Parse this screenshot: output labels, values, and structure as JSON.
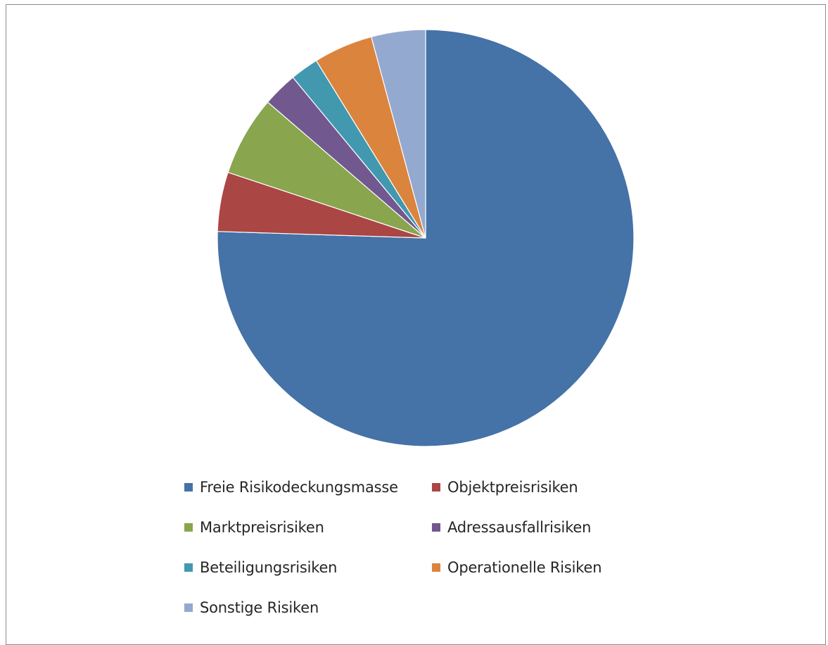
{
  "chart_data": {
    "type": "pie",
    "title": "",
    "slices": [
      {
        "label": "Freie Risikodeckungsmasse",
        "value": 75.5,
        "color": "#4572A7"
      },
      {
        "label": "Objektpreisrisiken",
        "value": 4.6,
        "color": "#AA4643"
      },
      {
        "label": "Marktpreisrisiken",
        "value": 6.2,
        "color": "#89A54E"
      },
      {
        "label": "Adressausfallrisiken",
        "value": 2.7,
        "color": "#71588F"
      },
      {
        "label": "Beteiligungsrisiken",
        "value": 2.2,
        "color": "#4198AF"
      },
      {
        "label": "Operationelle Risiken",
        "value": 4.6,
        "color": "#DB843D"
      },
      {
        "label": "Sonstige Risiken",
        "value": 4.2,
        "color": "#93A9CF"
      }
    ],
    "legend": {
      "placement": "bottom",
      "items": [
        {
          "label": "Freie Risikodeckungsmasse",
          "color": "#4572A7"
        },
        {
          "label": "Objektpreisrisiken",
          "color": "#AA4643"
        },
        {
          "label": "Marktpreisrisiken",
          "color": "#89A54E"
        },
        {
          "label": "Adressausfallrisiken",
          "color": "#71588F"
        },
        {
          "label": "Beteiligungsrisiken",
          "color": "#4198AF"
        },
        {
          "label": "Operationelle Risiken",
          "color": "#DB843D"
        },
        {
          "label": "Sonstige Risiken",
          "color": "#93A9CF"
        }
      ]
    },
    "start_angle_deg": 0,
    "direction": "clockwise"
  }
}
